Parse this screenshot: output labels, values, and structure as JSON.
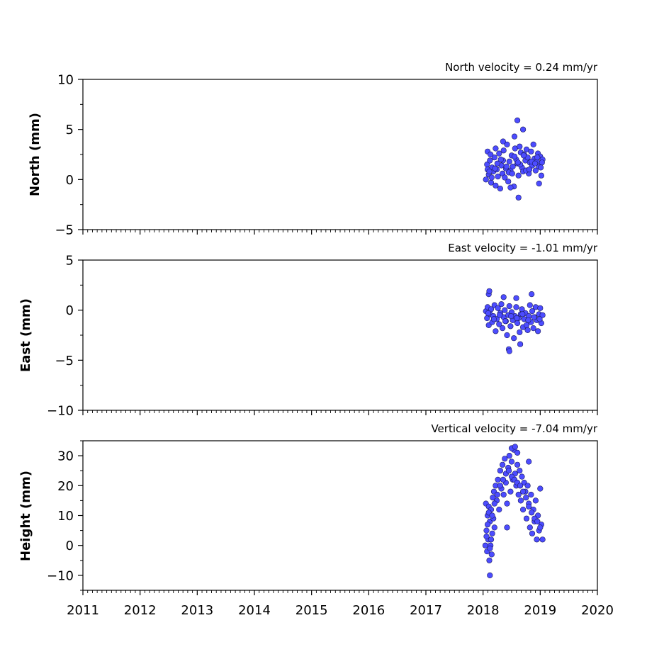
{
  "figure": {
    "panels": [
      {
        "id": "north",
        "ylabel": "North (mm)",
        "velocity_label": "North velocity = 0.24 mm/yr"
      },
      {
        "id": "east",
        "ylabel": "East (mm)",
        "velocity_label": "East velocity = -1.01 mm/yr"
      },
      {
        "id": "height",
        "ylabel": "Height (mm)",
        "velocity_label": "Vertical velocity = -7.04 mm/yr"
      }
    ]
  },
  "colors": {
    "marker_fill": "#4c4cff",
    "marker_edge": "#1a1a5e",
    "axes": "#000000"
  },
  "chart_data": [
    {
      "type": "scatter",
      "title": "North velocity = 0.24 mm/yr",
      "xlabel": "",
      "ylabel": "North (mm)",
      "xlim": [
        2011,
        2020
      ],
      "ylim": [
        -5,
        10
      ],
      "yticks": [
        -5,
        0,
        5,
        10
      ],
      "xticks": [
        2011,
        2012,
        2013,
        2014,
        2015,
        2016,
        2017,
        2018,
        2019,
        2020
      ],
      "xtick_labels_shown": false,
      "grid": false,
      "x": [
        2018.05,
        2018.07,
        2018.08,
        2018.1,
        2018.12,
        2018.14,
        2018.16,
        2018.18,
        2018.2,
        2018.22,
        2018.24,
        2018.26,
        2018.28,
        2018.3,
        2018.32,
        2018.34,
        2018.36,
        2018.38,
        2018.4,
        2018.42,
        2018.44,
        2018.46,
        2018.48,
        2018.5,
        2018.52,
        2018.54,
        2018.56,
        2018.58,
        2018.6,
        2018.62,
        2018.64,
        2018.66,
        2018.68,
        2018.7,
        2018.72,
        2018.74,
        2018.76,
        2018.78,
        2018.8,
        2018.82,
        2018.84,
        2018.86,
        2018.88,
        2018.9,
        2018.92,
        2018.94,
        2018.96,
        2018.98,
        2019.0,
        2019.02,
        2019.04,
        2018.08,
        2018.15,
        2018.25,
        2018.35,
        2018.45,
        2018.55,
        2018.65,
        2018.75,
        2018.85,
        2018.95,
        2019.03,
        2018.11,
        2018.21,
        2018.31,
        2018.41,
        2018.51,
        2018.61,
        2018.71,
        2018.81,
        2018.91,
        2019.01,
        2018.6,
        2018.7,
        2018.55,
        2018.35,
        2018.22,
        2018.13,
        2018.62,
        2018.48,
        2018.98
      ],
      "y": [
        0.0,
        1.5,
        2.8,
        0.5,
        1.9,
        -0.3,
        1.2,
        0.8,
        2.2,
        -0.6,
        1.0,
        0.3,
        2.6,
        -0.9,
        1.4,
        0.6,
        2.9,
        0.2,
        1.1,
        3.5,
        -0.2,
        1.8,
        0.9,
        2.4,
        1.3,
        -0.7,
        3.1,
        2.0,
        1.6,
        0.4,
        3.3,
        2.7,
        1.2,
        0.8,
        2.5,
        1.9,
        3.0,
        2.2,
        0.6,
        1.7,
        2.8,
        1.4,
        3.5,
        2.1,
        0.9,
        1.8,
        2.6,
        1.3,
        2.3,
        0.4,
        2.0,
        1.0,
        0.2,
        1.6,
        1.9,
        0.7,
        2.3,
        1.5,
        0.9,
        1.8,
        2.2,
        1.7,
        0.8,
        1.1,
        2.0,
        1.3,
        0.6,
        1.7,
        2.4,
        1.0,
        1.6,
        1.2,
        5.9,
        5.0,
        4.3,
        3.8,
        3.1,
        2.5,
        -1.8,
        -0.8,
        -0.4
      ]
    },
    {
      "type": "scatter",
      "title": "East velocity = -1.01 mm/yr",
      "xlabel": "",
      "ylabel": "East (mm)",
      "xlim": [
        2011,
        2020
      ],
      "ylim": [
        -10,
        5
      ],
      "yticks": [
        -10,
        -5,
        0,
        5
      ],
      "xticks": [
        2011,
        2012,
        2013,
        2014,
        2015,
        2016,
        2017,
        2018,
        2019,
        2020
      ],
      "xtick_labels_shown": false,
      "grid": false,
      "x": [
        2018.05,
        2018.07,
        2018.08,
        2018.1,
        2018.12,
        2018.14,
        2018.16,
        2018.18,
        2018.2,
        2018.22,
        2018.24,
        2018.26,
        2018.28,
        2018.3,
        2018.32,
        2018.34,
        2018.36,
        2018.38,
        2018.4,
        2018.42,
        2018.44,
        2018.46,
        2018.48,
        2018.5,
        2018.52,
        2018.54,
        2018.56,
        2018.58,
        2018.6,
        2018.62,
        2018.64,
        2018.66,
        2018.68,
        2018.7,
        2018.72,
        2018.74,
        2018.76,
        2018.78,
        2018.8,
        2018.82,
        2018.84,
        2018.86,
        2018.88,
        2018.9,
        2018.92,
        2018.94,
        2018.96,
        2018.98,
        2019.0,
        2019.02,
        2019.04,
        2018.09,
        2018.19,
        2018.29,
        2018.39,
        2018.49,
        2018.59,
        2018.69,
        2018.79,
        2018.89,
        2018.99,
        2018.1,
        2018.11,
        2018.45,
        2018.46,
        2018.65,
        2018.85,
        2018.36,
        2018.58
      ],
      "y": [
        -0.1,
        -0.8,
        0.3,
        -1.5,
        -0.4,
        0.1,
        -1.2,
        -0.6,
        0.5,
        -2.1,
        -0.9,
        0.2,
        -1.4,
        -0.3,
        0.6,
        -1.8,
        -0.7,
        0.0,
        -1.1,
        -2.5,
        -0.5,
        0.4,
        -1.6,
        -0.2,
        -1.0,
        -2.8,
        -0.6,
        0.3,
        -1.3,
        -0.8,
        -2.2,
        -0.4,
        0.1,
        -1.7,
        -0.9,
        -0.3,
        -1.5,
        -2.0,
        -0.6,
        0.5,
        -1.2,
        -0.1,
        -1.8,
        -0.7,
        0.3,
        -1.0,
        -2.1,
        -0.4,
        0.2,
        -1.3,
        -0.5,
        -0.3,
        -0.9,
        -0.5,
        -1.1,
        -0.6,
        -0.8,
        -0.4,
        -1.0,
        -0.7,
        -0.9,
        1.6,
        1.9,
        -3.9,
        -4.1,
        -3.4,
        1.6,
        1.3,
        1.2
      ]
    },
    {
      "type": "scatter",
      "title": "Vertical velocity = -7.04 mm/yr",
      "xlabel": "",
      "ylabel": "Height (mm)",
      "xlim": [
        2011,
        2020
      ],
      "ylim": [
        -15,
        35
      ],
      "yticks": [
        -10,
        0,
        10,
        20,
        30
      ],
      "xticks": [
        2011,
        2012,
        2013,
        2014,
        2015,
        2016,
        2017,
        2018,
        2019,
        2020
      ],
      "xtick_labels": [
        "2011",
        "2012",
        "2013",
        "2014",
        "2015",
        "2016",
        "2017",
        "2018",
        "2019",
        "2020"
      ],
      "grid": false,
      "x": [
        2018.04,
        2018.05,
        2018.06,
        2018.07,
        2018.08,
        2018.09,
        2018.1,
        2018.11,
        2018.12,
        2018.13,
        2018.14,
        2018.15,
        2018.16,
        2018.17,
        2018.18,
        2018.19,
        2018.2,
        2018.22,
        2018.24,
        2018.26,
        2018.28,
        2018.3,
        2018.32,
        2018.34,
        2018.36,
        2018.38,
        2018.4,
        2018.42,
        2018.44,
        2018.46,
        2018.48,
        2018.5,
        2018.52,
        2018.54,
        2018.56,
        2018.58,
        2018.6,
        2018.62,
        2018.64,
        2018.66,
        2018.68,
        2018.7,
        2018.72,
        2018.74,
        2018.76,
        2018.78,
        2018.8,
        2018.82,
        2018.84,
        2018.86,
        2018.88,
        2018.9,
        2018.92,
        2018.94,
        2018.96,
        2018.98,
        2019.0,
        2019.02,
        2019.04,
        2018.06,
        2018.08,
        2018.1,
        2018.12,
        2018.14,
        2018.16,
        2018.2,
        2018.25,
        2018.3,
        2018.35,
        2018.4,
        2018.45,
        2018.5,
        2018.55,
        2018.6,
        2018.65,
        2018.7,
        2018.75,
        2018.8,
        2018.85,
        2018.9,
        2018.95,
        2019.0,
        2018.12,
        2018.42,
        2018.5,
        2018.56,
        2018.6,
        2018.8
      ],
      "y": [
        0.0,
        14.0,
        5.0,
        -2.0,
        10.0,
        2.0,
        13.0,
        -5.0,
        8.0,
        0.0,
        12.0,
        -3.0,
        4.0,
        16.0,
        9.0,
        18.0,
        6.0,
        20.0,
        15.0,
        22.0,
        12.0,
        25.0,
        19.0,
        27.0,
        17.0,
        29.0,
        21.0,
        14.0,
        26.0,
        30.0,
        18.0,
        28.0,
        22.0,
        32.0,
        24.0,
        20.0,
        27.0,
        17.0,
        25.0,
        15.0,
        23.0,
        12.0,
        21.0,
        18.0,
        9.0,
        20.0,
        14.0,
        6.0,
        17.0,
        4.0,
        12.0,
        8.0,
        15.0,
        2.0,
        10.0,
        5.0,
        19.0,
        7.0,
        2.0,
        3.0,
        7.0,
        11.0,
        -1.0,
        2.0,
        10.0,
        14.0,
        17.0,
        20.0,
        22.0,
        24.0,
        25.0,
        23.0,
        22.0,
        21.0,
        20.0,
        18.0,
        16.0,
        13.0,
        11.0,
        9.0,
        8.0,
        6.0,
        -10.0,
        6.0,
        32.5,
        33.0,
        31.0,
        28.0
      ]
    }
  ]
}
